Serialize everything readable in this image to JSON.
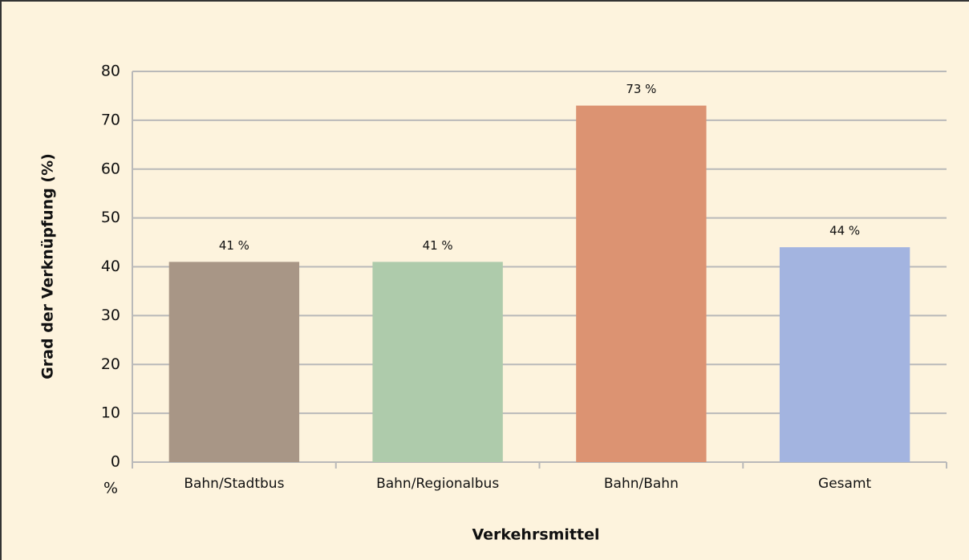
{
  "chart_data": {
    "type": "bar",
    "categories": [
      "Bahn/Stadtbus",
      "Bahn/Regionalbus",
      "Bahn/Bahn",
      "Gesamt"
    ],
    "values": [
      41,
      41,
      73,
      44
    ],
    "value_labels": [
      "41 %",
      "41 %",
      "73 %",
      "44 %"
    ],
    "colors": [
      "#a89686",
      "#aecbab",
      "#dc9372",
      "#a3b4e0"
    ],
    "ylabel": "Grad der Verknüpfung (%)",
    "xlabel": "Verkehrsmittel",
    "y_unit": "%",
    "ylim": [
      0,
      80
    ],
    "yticks": [
      0,
      10,
      20,
      30,
      40,
      50,
      60,
      70,
      80
    ],
    "grid": true
  }
}
